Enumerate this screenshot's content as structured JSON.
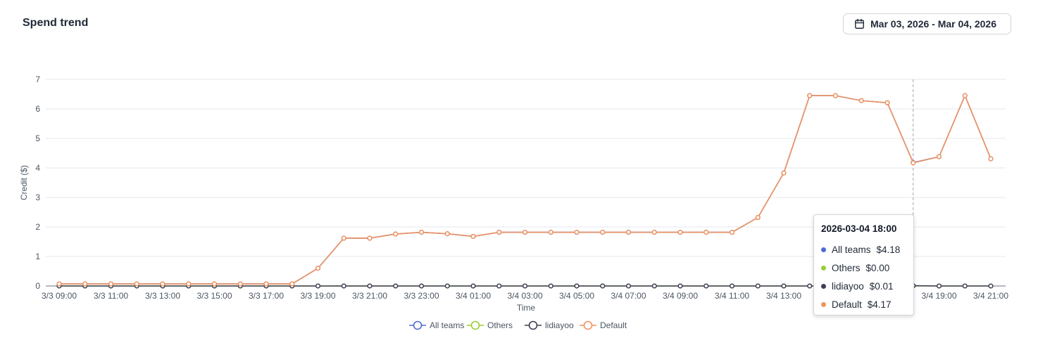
{
  "header": {
    "title": "Spend trend",
    "date_range": "Mar 03, 2026 - Mar 04, 2026",
    "date_icon": "calendar-icon"
  },
  "tooltip": {
    "title": "2026-03-04 18:00",
    "rows": [
      {
        "label": "All teams",
        "value": "$4.18",
        "color": "#4e6bd1"
      },
      {
        "label": "Others",
        "value": "$0.00",
        "color": "#9acd32"
      },
      {
        "label": "lidiayoo",
        "value": "$0.01",
        "color": "#3f3d56"
      },
      {
        "label": "Default",
        "value": "$4.17",
        "color": "#f0945f"
      }
    ]
  },
  "chart_data": {
    "type": "line",
    "title": "Spend trend",
    "xlabel": "Time",
    "ylabel": "Credit ($)",
    "ylim": [
      0,
      7
    ],
    "yticks": [
      0,
      1,
      2,
      3,
      4,
      5,
      6,
      7
    ],
    "grid": true,
    "legend_position": "bottom",
    "x": [
      "3/3 09:00",
      "3/3 10:00",
      "3/3 11:00",
      "3/3 12:00",
      "3/3 13:00",
      "3/3 14:00",
      "3/3 15:00",
      "3/3 16:00",
      "3/3 17:00",
      "3/3 18:00",
      "3/3 19:00",
      "3/3 20:00",
      "3/3 21:00",
      "3/3 22:00",
      "3/3 23:00",
      "3/4 00:00",
      "3/4 01:00",
      "3/4 02:00",
      "3/4 03:00",
      "3/4 04:00",
      "3/4 05:00",
      "3/4 06:00",
      "3/4 07:00",
      "3/4 08:00",
      "3/4 09:00",
      "3/4 10:00",
      "3/4 11:00",
      "3/4 12:00",
      "3/4 13:00",
      "3/4 14:00",
      "3/4 15:00",
      "3/4 16:00",
      "3/4 17:00",
      "3/4 18:00",
      "3/4 19:00",
      "3/4 20:00",
      "3/4 21:00"
    ],
    "xtick_labels": [
      "3/3 09:00",
      "3/3 11:00",
      "3/3 13:00",
      "3/3 15:00",
      "3/3 17:00",
      "3/3 19:00",
      "3/3 21:00",
      "3/3 23:00",
      "3/4 01:00",
      "3/4 03:00",
      "3/4 05:00",
      "3/4 07:00",
      "3/4 09:00",
      "3/4 11:00",
      "3/4 13:00",
      "3/4 15:00",
      "3/4 17:00",
      "3/4 19:00",
      "3/4 21:00"
    ],
    "highlight_x": "3/4 18:00",
    "series": [
      {
        "name": "All teams",
        "color": "#4e6bd1",
        "values": [
          0.07,
          0.07,
          0.07,
          0.07,
          0.07,
          0.07,
          0.07,
          0.07,
          0.07,
          0.07,
          0.6,
          1.62,
          1.62,
          1.76,
          1.82,
          1.77,
          1.68,
          1.82,
          1.82,
          1.82,
          1.82,
          1.82,
          1.82,
          1.82,
          1.82,
          1.82,
          1.82,
          2.32,
          3.83,
          6.45,
          6.45,
          6.28,
          6.21,
          4.18,
          4.38,
          6.45,
          4.31
        ]
      },
      {
        "name": "Others",
        "color": "#9acd32",
        "values": [
          0,
          0,
          0,
          0,
          0,
          0,
          0,
          0,
          0,
          0,
          0,
          0,
          0,
          0,
          0,
          0,
          0,
          0,
          0,
          0,
          0,
          0,
          0,
          0,
          0,
          0,
          0,
          0,
          0,
          0,
          0,
          0,
          0,
          0,
          0,
          0,
          0
        ]
      },
      {
        "name": "lidiayoo",
        "color": "#3f3d56",
        "values": [
          0,
          0,
          0,
          0,
          0,
          0,
          0,
          0,
          0,
          0,
          0,
          0,
          0,
          0,
          0,
          0,
          0,
          0,
          0,
          0,
          0,
          0,
          0,
          0,
          0,
          0,
          0,
          0,
          0,
          0,
          0,
          0,
          0,
          0.01,
          0,
          0,
          0
        ]
      },
      {
        "name": "Default",
        "color": "#f0945f",
        "values": [
          0.07,
          0.07,
          0.07,
          0.07,
          0.07,
          0.07,
          0.07,
          0.07,
          0.07,
          0.07,
          0.6,
          1.62,
          1.62,
          1.76,
          1.82,
          1.77,
          1.68,
          1.82,
          1.82,
          1.82,
          1.82,
          1.82,
          1.82,
          1.82,
          1.82,
          1.82,
          1.82,
          2.32,
          3.83,
          6.45,
          6.45,
          6.28,
          6.21,
          4.17,
          4.38,
          6.45,
          4.31
        ]
      }
    ]
  }
}
